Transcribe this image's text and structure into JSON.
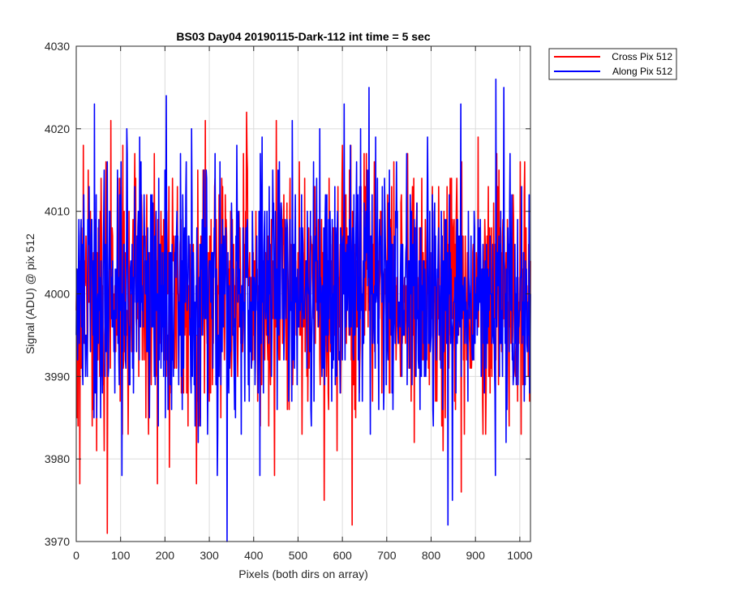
{
  "chart_data": {
    "type": "line",
    "title": "BS03 Day04 20190115-Dark-112 int time = 5 sec",
    "xlabel": "Pixels (both dirs on array)",
    "ylabel": "Signal (ADU) @ pix 512",
    "xlim": [
      0,
      1024
    ],
    "ylim": [
      3970,
      4030
    ],
    "xticks": [
      0,
      100,
      200,
      300,
      400,
      500,
      600,
      700,
      800,
      900,
      1000
    ],
    "yticks": [
      3970,
      3980,
      3990,
      4000,
      4010,
      4020,
      4030
    ],
    "grid": true,
    "legend_position": "outside top-right",
    "noise_mean": 4000,
    "series": [
      {
        "name": "Cross Pix 512",
        "color": "#ff0000",
        "min": 3971,
        "max": 4022,
        "x": [
          0,
          1,
          2,
          3,
          4,
          5,
          6,
          7,
          8,
          9,
          10,
          12,
          14,
          16,
          18,
          20,
          25,
          40,
          45,
          63,
          65,
          70,
          100,
          104,
          105,
          107,
          200,
          210,
          269,
          271,
          322,
          380,
          384,
          451,
          480,
          500,
          520,
          540,
          559,
          600,
          622,
          700,
          760,
          800,
          813,
          832,
          860,
          868,
          900,
          948,
          960,
          990,
          1000,
          1024
        ],
        "values": [
          3998,
          4003,
          3985,
          4001,
          3984,
          3998,
          3995,
          4004,
          3977,
          4000,
          3998,
          4008,
          3990,
          4018,
          3994,
          4001,
          3992,
          3996,
          4006,
          3981,
          3997,
          3971,
          4001,
          3983,
          4018,
          3992,
          3996,
          3979,
          3985,
          3977,
          4012,
          3996,
          4022,
          4021,
          3986,
          4005,
          3990,
          4008,
          3975,
          4018,
          3972,
          3999,
          3995,
          4001,
          3987,
          3985,
          3999,
          3976,
          3997,
          4017,
          3995,
          3990,
          3998,
          4004
        ]
      },
      {
        "name": "Along Pix 512",
        "color": "#0000ff",
        "min": 3970,
        "max": 4026,
        "x": [
          0,
          1,
          3,
          5,
          7,
          9,
          12,
          20,
          30,
          40,
          41,
          42,
          50,
          80,
          100,
          103,
          106,
          120,
          160,
          200,
          203,
          205,
          250,
          300,
          318,
          340,
          345,
          400,
          450,
          500,
          536,
          540,
          600,
          604,
          608,
          650,
          700,
          750,
          800,
          838,
          840,
          900,
          945,
          946,
          948,
          950,
          1000,
          1010,
          1024
        ],
        "values": [
          3995,
          4003,
          3992,
          4003,
          3994,
          4001,
          3996,
          3995,
          4005,
          3985,
          4023,
          3999,
          3994,
          4002,
          3998,
          3978,
          4002,
          3996,
          3995,
          4015,
          4024,
          3992,
          3998,
          4004,
          3978,
          3970,
          4001,
          3998,
          4002,
          3996,
          3987,
          4004,
          3992,
          4023,
          3996,
          4002,
          3997,
          4004,
          3995,
          3972,
          4001,
          4000,
          3978,
          4026,
          3996,
          4005,
          3998,
          3987,
          4000
        ]
      }
    ]
  }
}
